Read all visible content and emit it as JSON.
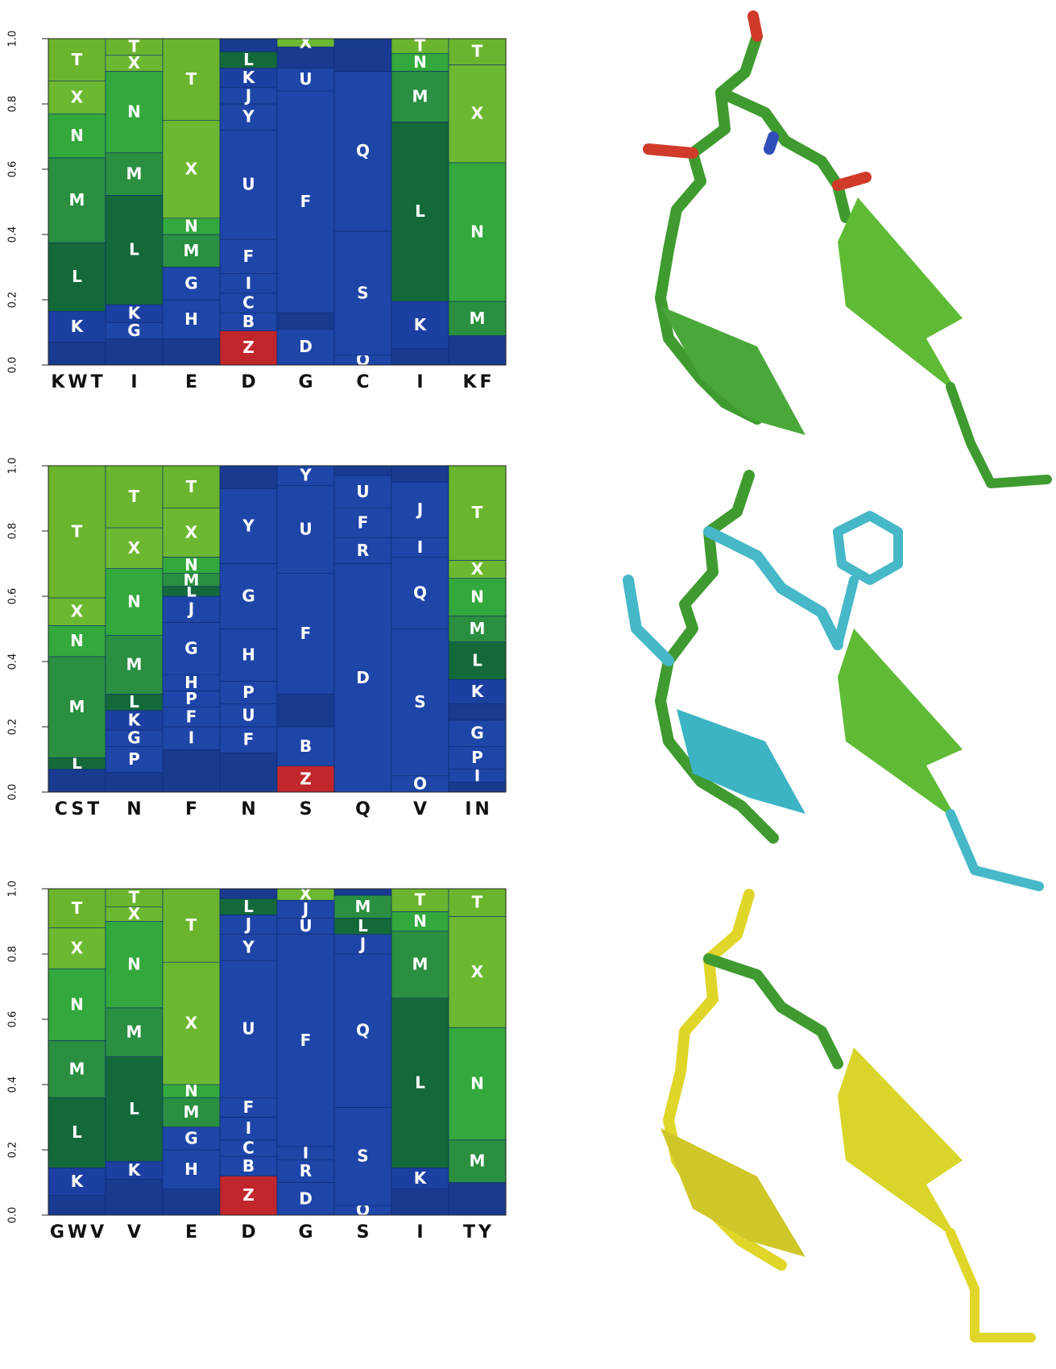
{
  "chart_data": [
    {
      "type": "bar",
      "ylim": [
        0,
        1
      ],
      "yticks": [
        {
          "value": 0,
          "label": "0.0"
        },
        0.2,
        0.4,
        0.6,
        0.8,
        {
          "value": 1,
          "label": "1.0"
        }
      ],
      "colors": {
        "T": "#6ab52d",
        "X": "#6cb830",
        "N": "#33a83c",
        "M": "#2a8f40",
        "L": "#14693a",
        "K": "#1c3fa2",
        "G": "#1e45a8",
        "H": "#1e45a8",
        "P": "#1e45a8",
        "I": "#1e45a8",
        "F": "#1e45a8",
        "U": "#1e45a8",
        "Y": "#1e45a8",
        "J": "#1e45a8",
        "C": "#1e45a8",
        "B": "#1e45a8",
        "D": "#1e45a8",
        "S": "#1e45a8",
        "Q": "#1e45a8",
        "R": "#1e45a8",
        "O": "#1e45a8",
        "Z": "#c0262b"
      },
      "other_color": "#183a8f",
      "categories": [
        "KWT",
        "I",
        "E",
        "D",
        "G",
        "C",
        "I",
        "KF"
      ],
      "columns": [
        {
          "segments": [
            {
              "name": null,
              "value": 0.07
            },
            {
              "name": "K",
              "value": 0.095
            },
            {
              "name": "L",
              "value": 0.21
            },
            {
              "name": "M",
              "value": 0.26
            },
            {
              "name": "N",
              "value": 0.135
            },
            {
              "name": "X",
              "value": 0.1
            },
            {
              "name": "T",
              "value": 0.13
            }
          ]
        },
        {
          "segments": [
            {
              "name": null,
              "value": 0.08
            },
            {
              "name": "G",
              "value": 0.05
            },
            {
              "name": "K",
              "value": 0.055
            },
            {
              "name": "L",
              "value": 0.335
            },
            {
              "name": "M",
              "value": 0.13
            },
            {
              "name": "N",
              "value": 0.25
            },
            {
              "name": "X",
              "value": 0.05
            },
            {
              "name": "T",
              "value": 0.05
            }
          ]
        },
        {
          "segments": [
            {
              "name": null,
              "value": 0.08
            },
            {
              "name": "H",
              "value": 0.12
            },
            {
              "name": "G",
              "value": 0.1
            },
            {
              "name": "M",
              "value": 0.1
            },
            {
              "name": "N",
              "value": 0.05
            },
            {
              "name": "X",
              "value": 0.3
            },
            {
              "name": "T",
              "value": 0.25
            }
          ]
        },
        {
          "segments": [
            {
              "name": "Z",
              "value": 0.105
            },
            {
              "name": "B",
              "value": 0.055
            },
            {
              "name": "C",
              "value": 0.06
            },
            {
              "name": "I",
              "value": 0.06
            },
            {
              "name": "F",
              "value": 0.105
            },
            {
              "name": "U",
              "value": 0.335
            },
            {
              "name": "Y",
              "value": 0.08
            },
            {
              "name": "J",
              "value": 0.05
            },
            {
              "name": "K",
              "value": 0.06
            },
            {
              "name": "L",
              "value": 0.05
            },
            {
              "name": null,
              "value": 0.04
            }
          ]
        },
        {
          "segments": [
            {
              "name": "D",
              "value": 0.11
            },
            {
              "name": null,
              "value": 0.05
            },
            {
              "name": "F",
              "value": 0.68
            },
            {
              "name": "U",
              "value": 0.07
            },
            {
              "name": null,
              "value": 0.065
            },
            {
              "name": "X",
              "value": 0.025
            }
          ]
        },
        {
          "segments": [
            {
              "name": "O",
              "value": 0.03
            },
            {
              "name": "S",
              "value": 0.38
            },
            {
              "name": "Q",
              "value": 0.49
            },
            {
              "name": null,
              "value": 0.1
            }
          ]
        },
        {
          "segments": [
            {
              "name": null,
              "value": 0.05
            },
            {
              "name": "K",
              "value": 0.145
            },
            {
              "name": "L",
              "value": 0.55
            },
            {
              "name": "M",
              "value": 0.155
            },
            {
              "name": "N",
              "value": 0.055
            },
            {
              "name": "T",
              "value": 0.045
            }
          ]
        },
        {
          "segments": [
            {
              "name": null,
              "value": 0.09
            },
            {
              "name": "M",
              "value": 0.105
            },
            {
              "name": "N",
              "value": 0.425
            },
            {
              "name": "X",
              "value": 0.3
            },
            {
              "name": "T",
              "value": 0.08
            }
          ]
        }
      ]
    },
    {
      "type": "bar",
      "ylim": [
        0,
        1
      ],
      "yticks": [
        {
          "value": 0,
          "label": "0.0"
        },
        0.2,
        0.4,
        0.6,
        0.8,
        {
          "value": 1,
          "label": "1.0"
        }
      ],
      "colors": {
        "T": "#6ab52d",
        "X": "#6cb830",
        "N": "#33a83c",
        "M": "#2a8f40",
        "L": "#14693a",
        "K": "#1c3fa2",
        "G": "#1e45a8",
        "H": "#1e45a8",
        "P": "#1e45a8",
        "I": "#1e45a8",
        "F": "#1e45a8",
        "U": "#1e45a8",
        "Y": "#1e45a8",
        "J": "#1e45a8",
        "C": "#1e45a8",
        "B": "#1e45a8",
        "D": "#1e45a8",
        "S": "#1e45a8",
        "Q": "#1e45a8",
        "R": "#1e45a8",
        "O": "#1e45a8",
        "Z": "#c0262b"
      },
      "other_color": "#183a8f",
      "categories": [
        "CST",
        "N",
        "F",
        "N",
        "S",
        "Q",
        "V",
        "IN"
      ],
      "columns": [
        {
          "segments": [
            {
              "name": null,
              "value": 0.07
            },
            {
              "name": "L",
              "value": 0.035
            },
            {
              "name": "M",
              "value": 0.31
            },
            {
              "name": "N",
              "value": 0.095
            },
            {
              "name": "X",
              "value": 0.085
            },
            {
              "name": "T",
              "value": 0.405
            }
          ]
        },
        {
          "segments": [
            {
              "name": null,
              "value": 0.06
            },
            {
              "name": "P",
              "value": 0.08
            },
            {
              "name": "G",
              "value": 0.05
            },
            {
              "name": "K",
              "value": 0.06
            },
            {
              "name": "L",
              "value": 0.05
            },
            {
              "name": "M",
              "value": 0.18
            },
            {
              "name": "N",
              "value": 0.205
            },
            {
              "name": "X",
              "value": 0.125
            },
            {
              "name": "T",
              "value": 0.19
            }
          ]
        },
        {
          "segments": [
            {
              "name": null,
              "value": 0.13
            },
            {
              "name": "I",
              "value": 0.07
            },
            {
              "name": "F",
              "value": 0.06
            },
            {
              "name": "P",
              "value": 0.05
            },
            {
              "name": "H",
              "value": 0.05
            },
            {
              "name": "G",
              "value": 0.16
            },
            {
              "name": "J",
              "value": 0.08
            },
            {
              "name": "L",
              "value": 0.03
            },
            {
              "name": "M",
              "value": 0.04
            },
            {
              "name": "N",
              "value": 0.05
            },
            {
              "name": "X",
              "value": 0.15
            },
            {
              "name": "T",
              "value": 0.13
            }
          ]
        },
        {
          "segments": [
            {
              "name": null,
              "value": 0.12
            },
            {
              "name": "F",
              "value": 0.08
            },
            {
              "name": "U",
              "value": 0.07
            },
            {
              "name": "P",
              "value": 0.07
            },
            {
              "name": "H",
              "value": 0.16
            },
            {
              "name": "G",
              "value": 0.2
            },
            {
              "name": "Y",
              "value": 0.23
            },
            {
              "name": null,
              "value": 0.07
            }
          ]
        },
        {
          "segments": [
            {
              "name": "Z",
              "value": 0.08
            },
            {
              "name": "B",
              "value": 0.12
            },
            {
              "name": null,
              "value": 0.1
            },
            {
              "name": "F",
              "value": 0.37
            },
            {
              "name": "U",
              "value": 0.27
            },
            {
              "name": "Y",
              "value": 0.06
            }
          ]
        },
        {
          "segments": [
            {
              "name": "D",
              "value": 0.7
            },
            {
              "name": "R",
              "value": 0.08
            },
            {
              "name": "F",
              "value": 0.09
            },
            {
              "name": "U",
              "value": 0.1
            },
            {
              "name": null,
              "value": 0.03
            }
          ]
        },
        {
          "segments": [
            {
              "name": "O",
              "value": 0.05
            },
            {
              "name": "S",
              "value": 0.45
            },
            {
              "name": "Q",
              "value": 0.22
            },
            {
              "name": "I",
              "value": 0.06
            },
            {
              "name": "J",
              "value": 0.17
            },
            {
              "name": null,
              "value": 0.05
            }
          ]
        },
        {
          "segments": [
            {
              "name": null,
              "value": 0.03
            },
            {
              "name": "I",
              "value": 0.04
            },
            {
              "name": "P",
              "value": 0.07
            },
            {
              "name": "G",
              "value": 0.08
            },
            {
              "name": null,
              "value": 0.05
            },
            {
              "name": "K",
              "value": 0.075
            },
            {
              "name": "L",
              "value": 0.115
            },
            {
              "name": "M",
              "value": 0.08
            },
            {
              "name": "N",
              "value": 0.115
            },
            {
              "name": "X",
              "value": 0.055
            },
            {
              "name": "T",
              "value": 0.29
            }
          ]
        }
      ]
    },
    {
      "type": "bar",
      "ylim": [
        0,
        1
      ],
      "yticks": [
        {
          "value": 0,
          "label": "0.0"
        },
        0.2,
        0.4,
        0.6,
        0.8,
        {
          "value": 1,
          "label": "1.0"
        }
      ],
      "colors": {
        "T": "#6ab52d",
        "X": "#6cb830",
        "N": "#33a83c",
        "M": "#2a8f40",
        "L": "#14693a",
        "K": "#1c3fa2",
        "G": "#1e45a8",
        "H": "#1e45a8",
        "P": "#1e45a8",
        "I": "#1e45a8",
        "F": "#1e45a8",
        "U": "#1e45a8",
        "Y": "#1e45a8",
        "J": "#1e45a8",
        "C": "#1e45a8",
        "B": "#1e45a8",
        "D": "#1e45a8",
        "S": "#1e45a8",
        "Q": "#1e45a8",
        "R": "#1e45a8",
        "O": "#1e45a8",
        "Z": "#c0262b"
      },
      "other_color": "#183a8f",
      "categories": [
        "GWV",
        "V",
        "E",
        "D",
        "G",
        "S",
        "I",
        "TY"
      ],
      "columns": [
        {
          "segments": [
            {
              "name": null,
              "value": 0.06
            },
            {
              "name": "K",
              "value": 0.085
            },
            {
              "name": "L",
              "value": 0.215
            },
            {
              "name": "M",
              "value": 0.175
            },
            {
              "name": "N",
              "value": 0.22
            },
            {
              "name": "X",
              "value": 0.125
            },
            {
              "name": "T",
              "value": 0.12
            }
          ]
        },
        {
          "segments": [
            {
              "name": null,
              "value": 0.11
            },
            {
              "name": "K",
              "value": 0.055
            },
            {
              "name": "L",
              "value": 0.32
            },
            {
              "name": "M",
              "value": 0.15
            },
            {
              "name": "N",
              "value": 0.265
            },
            {
              "name": "X",
              "value": 0.045
            },
            {
              "name": "T",
              "value": 0.055
            }
          ]
        },
        {
          "segments": [
            {
              "name": null,
              "value": 0.08
            },
            {
              "name": "H",
              "value": 0.12
            },
            {
              "name": "G",
              "value": 0.07
            },
            {
              "name": "M",
              "value": 0.09
            },
            {
              "name": "N",
              "value": 0.04
            },
            {
              "name": "X",
              "value": 0.375
            },
            {
              "name": "T",
              "value": 0.225
            }
          ]
        },
        {
          "segments": [
            {
              "name": "Z",
              "value": 0.12
            },
            {
              "name": "B",
              "value": 0.06
            },
            {
              "name": "C",
              "value": 0.05
            },
            {
              "name": "I",
              "value": 0.07
            },
            {
              "name": "F",
              "value": 0.06
            },
            {
              "name": "U",
              "value": 0.42
            },
            {
              "name": "Y",
              "value": 0.08
            },
            {
              "name": "J",
              "value": 0.06
            },
            {
              "name": "L",
              "value": 0.05
            },
            {
              "name": null,
              "value": 0.03
            }
          ]
        },
        {
          "segments": [
            {
              "name": "D",
              "value": 0.1
            },
            {
              "name": "R",
              "value": 0.07
            },
            {
              "name": "I",
              "value": 0.04
            },
            {
              "name": "F",
              "value": 0.65
            },
            {
              "name": "U",
              "value": 0.05
            },
            {
              "name": "J",
              "value": 0.055
            },
            {
              "name": "X",
              "value": 0.035
            }
          ]
        },
        {
          "segments": [
            {
              "name": "O",
              "value": 0.03
            },
            {
              "name": "S",
              "value": 0.3
            },
            {
              "name": "Q",
              "value": 0.47
            },
            {
              "name": "J",
              "value": 0.06
            },
            {
              "name": "L",
              "value": 0.05
            },
            {
              "name": "M",
              "value": 0.07
            },
            {
              "name": null,
              "value": 0.02
            }
          ]
        },
        {
          "segments": [
            {
              "name": null,
              "value": 0.08
            },
            {
              "name": "K",
              "value": 0.065
            },
            {
              "name": "L",
              "value": 0.52
            },
            {
              "name": "M",
              "value": 0.205
            },
            {
              "name": "N",
              "value": 0.06
            },
            {
              "name": "T",
              "value": 0.07
            }
          ]
        },
        {
          "segments": [
            {
              "name": null,
              "value": 0.1
            },
            {
              "name": "M",
              "value": 0.13
            },
            {
              "name": "N",
              "value": 0.345
            },
            {
              "name": "X",
              "value": 0.34
            },
            {
              "name": "T",
              "value": 0.085
            }
          ]
        }
      ]
    }
  ]
}
